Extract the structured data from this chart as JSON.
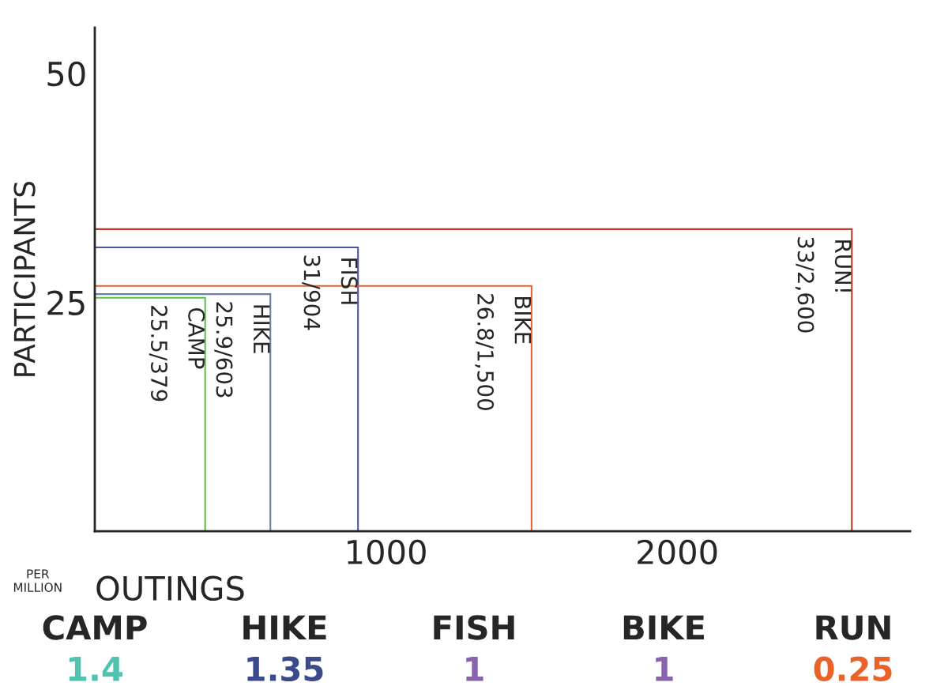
{
  "chart_data": [
    {
      "type": "line",
      "xlabel": "OUTINGS",
      "ylabel": "PARTICIPANTS",
      "annotations": [
        "PER MILLION",
        {
          "text": "25.5/379",
          "x": 379,
          "y": 25.5
        },
        {
          "text": "25.9/603",
          "x": 603,
          "y": 25.9
        },
        {
          "text": "31/904",
          "x": 904,
          "y": 31
        },
        {
          "text": "26.8/1,500",
          "x": 1500,
          "y": 26.8
        },
        {
          "text": "33/2,600",
          "x": 2600,
          "y": 33
        }
      ],
      "series": [
        {
          "name": "CAMP",
          "color": "#5cbf4a",
          "x": [
            0,
            379,
            379
          ],
          "values": [
            25.5,
            25.5,
            0
          ]
        },
        {
          "name": "HIKE",
          "color": "#6a7fa8",
          "x": [
            0,
            603,
            603
          ],
          "values": [
            25.9,
            25.9,
            0
          ]
        },
        {
          "name": "FISH",
          "color": "#4a55a0",
          "x": [
            0,
            904,
            904
          ],
          "values": [
            31,
            31,
            0
          ]
        },
        {
          "name": "BIKE",
          "color": "#e8622a",
          "x": [
            0,
            1500,
            1500
          ],
          "values": [
            26.8,
            26.8,
            0
          ]
        },
        {
          "name": "RUN!",
          "color": "#c0392b",
          "x": [
            0,
            2600,
            2600
          ],
          "values": [
            33,
            33,
            0
          ]
        }
      ],
      "xlim": [
        0,
        2800
      ],
      "xticks": [
        1000,
        2000
      ],
      "ylim": [
        0,
        55
      ],
      "yticks": [
        25,
        50
      ],
      "grid": false,
      "legend": false,
      "marker": "none",
      "line_style": "solid"
    },
    {
      "type": "other",
      "categories": [
        "CAMP",
        "HIKE",
        "FISH",
        "BIKE",
        "RUN"
      ],
      "values": [
        1.4,
        1.35,
        1,
        1,
        0.25
      ],
      "colors": [
        "#4fc3b0",
        "#3b4a8a",
        "#8a63b0",
        "#8a63b0",
        "#e8622a"
      ],
      "data_labels": true
    }
  ]
}
